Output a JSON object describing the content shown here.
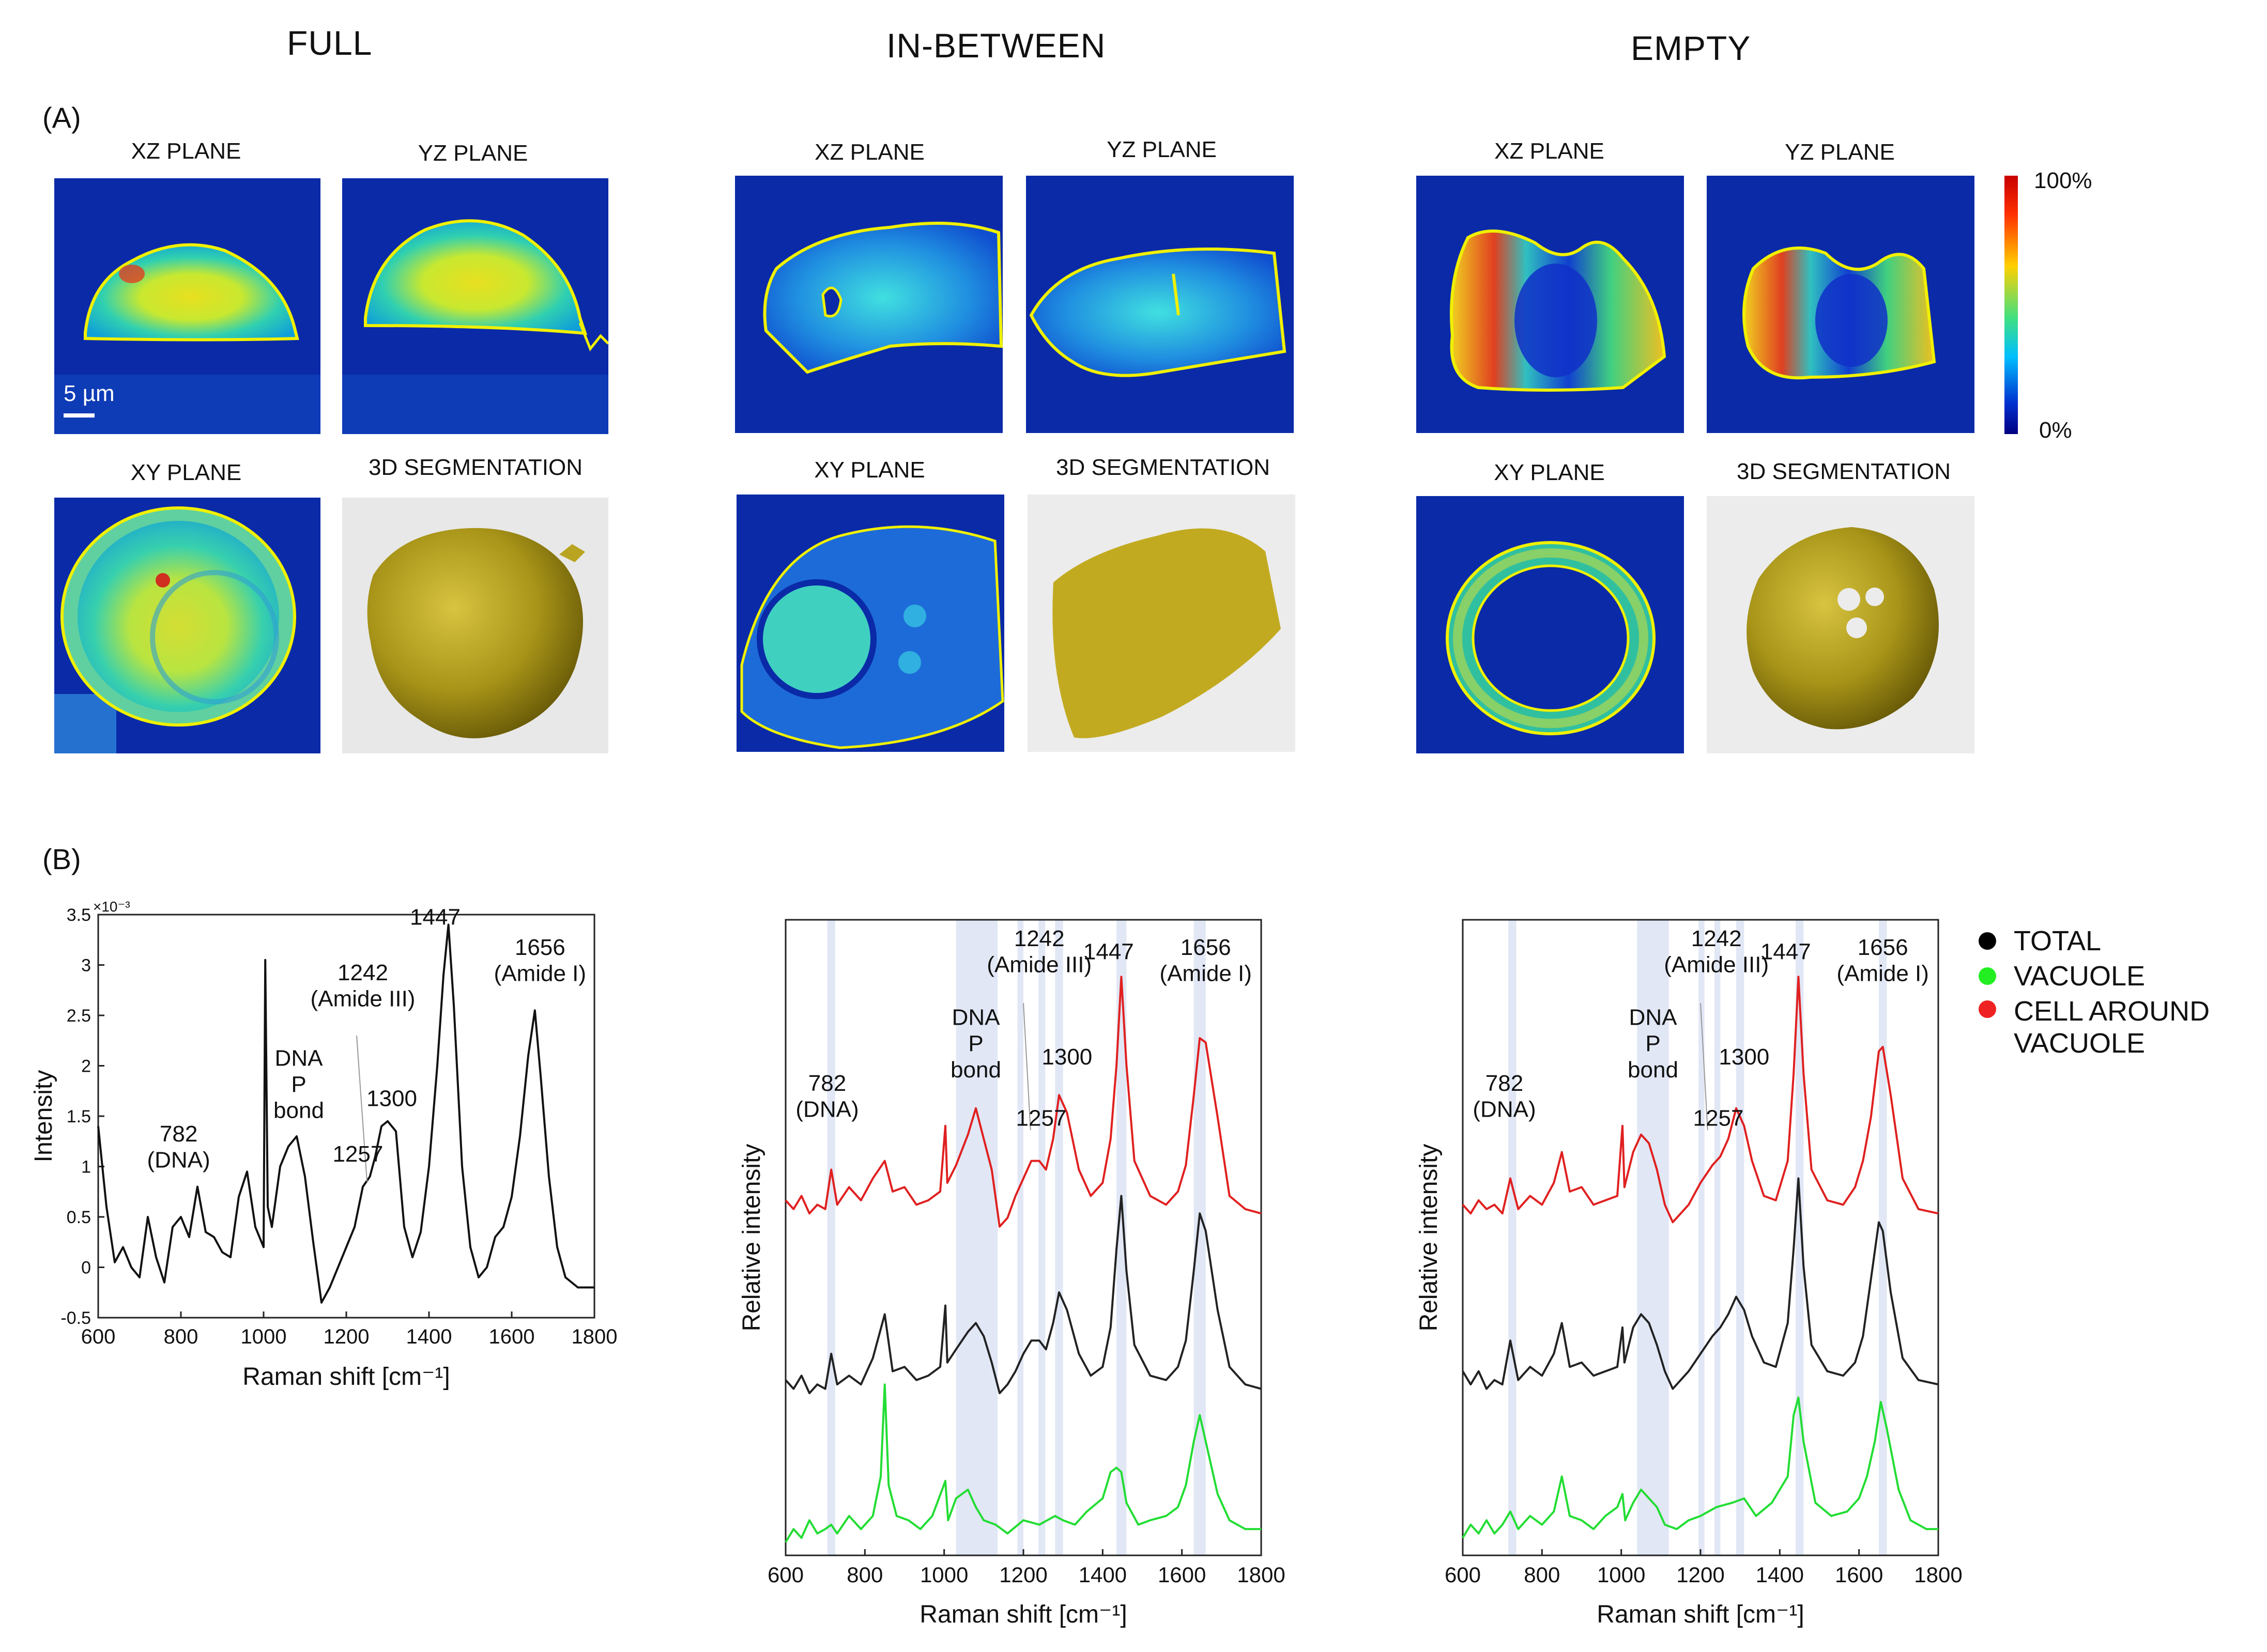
{
  "columns": {
    "full": "FULL",
    "in_between": "IN-BETWEEN",
    "empty": "EMPTY"
  },
  "panels": {
    "a": "(A)",
    "b": "(B)"
  },
  "planes": {
    "xz": "XZ PLANE",
    "yz": "YZ PLANE",
    "xy": "XY PLANE",
    "seg": "3D SEGMENTATION"
  },
  "scalebar": "5 µm",
  "colorbar": {
    "max": "100%",
    "min": "0%"
  },
  "legend": [
    {
      "label": "TOTAL",
      "color": "#000000"
    },
    {
      "label": "VACUOLE",
      "color": "#22ee22"
    },
    {
      "label": "CELL AROUND VACUOLE",
      "line1": "CELL AROUND",
      "line2": "VACUOLE",
      "color": "#ee2222"
    }
  ],
  "chart_data": [
    {
      "type": "line",
      "xlabel": "Raman shift [cm⁻¹]",
      "ylabel": "Intensity",
      "exponent": "×10⁻³",
      "xlim": [
        600,
        1800
      ],
      "ylim": [
        -0.5,
        3.5
      ],
      "xticks": [
        "600",
        "800",
        "1000",
        "1200",
        "1400",
        "1600",
        "1800"
      ],
      "yticks": [
        "-0.5",
        "0",
        "0.5",
        "1",
        "1.5",
        "2",
        "2.5",
        "3",
        "3.5"
      ],
      "series": [
        {
          "color": "#111111",
          "x": [
            600,
            620,
            640,
            660,
            680,
            700,
            720,
            740,
            760,
            780,
            800,
            820,
            840,
            860,
            880,
            900,
            920,
            940,
            960,
            980,
            1000,
            1004,
            1010,
            1020,
            1040,
            1060,
            1080,
            1100,
            1120,
            1140,
            1160,
            1180,
            1200,
            1220,
            1240,
            1257,
            1270,
            1285,
            1300,
            1320,
            1340,
            1360,
            1380,
            1400,
            1420,
            1435,
            1447,
            1460,
            1480,
            1500,
            1520,
            1540,
            1560,
            1580,
            1600,
            1620,
            1640,
            1656,
            1670,
            1690,
            1710,
            1730,
            1760,
            1800
          ],
          "y": [
            1.4,
            0.6,
            0.05,
            0.2,
            0.0,
            -0.1,
            0.5,
            0.1,
            -0.15,
            0.4,
            0.5,
            0.3,
            0.8,
            0.35,
            0.3,
            0.15,
            0.1,
            0.7,
            0.95,
            0.4,
            0.2,
            3.05,
            0.6,
            0.4,
            1.0,
            1.2,
            1.3,
            0.9,
            0.25,
            -0.35,
            -0.2,
            0.0,
            0.2,
            0.4,
            0.8,
            0.9,
            1.1,
            1.4,
            1.45,
            1.35,
            0.4,
            0.1,
            0.35,
            1.0,
            2.0,
            2.9,
            3.4,
            2.6,
            1.0,
            0.2,
            -0.1,
            0.0,
            0.3,
            0.4,
            0.7,
            1.3,
            2.1,
            2.55,
            1.9,
            0.9,
            0.2,
            -0.1,
            -0.2,
            -0.2
          ]
        }
      ],
      "annotations": [
        "782\n(DNA)",
        "DNA\nP\nbond",
        "1242\n(Amide III)",
        "1257",
        "1300",
        "1447",
        "1656\n(Amide I)"
      ]
    },
    {
      "type": "line",
      "xlabel": "Raman shift [cm⁻¹]",
      "ylabel": "Relative intensity",
      "xlim": [
        600,
        1800
      ],
      "xticks": [
        "600",
        "800",
        "1000",
        "1200",
        "1400",
        "1600",
        "1800"
      ],
      "bands": [
        [
          705,
          725
        ],
        [
          1030,
          1135
        ],
        [
          1185,
          1200
        ],
        [
          1238,
          1255
        ],
        [
          1280,
          1300
        ],
        [
          1435,
          1460
        ],
        [
          1630,
          1660
        ]
      ],
      "annotations": [
        "782\n(DNA)",
        "DNA\nP\nbond",
        "1242\n(Amide III)",
        "1257",
        "1300",
        "1447",
        "1656\n(Amide I)"
      ],
      "series": [
        {
          "name": "CELL AROUND VACUOLE",
          "color": "#e02020",
          "x": [
            600,
            620,
            640,
            660,
            680,
            700,
            715,
            730,
            760,
            790,
            820,
            850,
            870,
            900,
            930,
            960,
            990,
            1003,
            1008,
            1030,
            1060,
            1080,
            1100,
            1120,
            1140,
            1160,
            1180,
            1200,
            1220,
            1240,
            1257,
            1275,
            1290,
            1310,
            1340,
            1370,
            1400,
            1420,
            1435,
            1447,
            1460,
            1480,
            1520,
            1560,
            1590,
            1610,
            1630,
            1645,
            1660,
            1690,
            1720,
            1760,
            1800
          ],
          "y": [
            8.1,
            7.9,
            8.2,
            7.8,
            8.0,
            7.9,
            8.8,
            8.0,
            8.4,
            8.1,
            8.6,
            9.0,
            8.3,
            8.4,
            8.0,
            8.1,
            8.3,
            9.8,
            8.5,
            8.9,
            9.6,
            10.2,
            9.5,
            8.8,
            7.5,
            7.7,
            8.2,
            8.6,
            9.0,
            9.0,
            8.8,
            9.5,
            10.5,
            10.1,
            8.8,
            8.2,
            8.5,
            9.5,
            11.2,
            13.2,
            11.2,
            9.0,
            8.2,
            8.0,
            8.3,
            8.9,
            10.5,
            11.8,
            11.7,
            10.0,
            8.2,
            7.9,
            7.8
          ]
        },
        {
          "name": "TOTAL",
          "color": "#222222",
          "x": [
            600,
            620,
            640,
            660,
            680,
            700,
            715,
            730,
            760,
            790,
            820,
            850,
            870,
            900,
            930,
            960,
            990,
            1003,
            1008,
            1030,
            1060,
            1080,
            1100,
            1120,
            1140,
            1160,
            1180,
            1200,
            1220,
            1240,
            1257,
            1275,
            1290,
            1310,
            1340,
            1370,
            1400,
            1420,
            1435,
            1447,
            1460,
            1480,
            1520,
            1560,
            1590,
            1610,
            1630,
            1645,
            1660,
            1690,
            1720,
            1760,
            1800
          ],
          "y": [
            4.0,
            3.8,
            4.1,
            3.7,
            3.9,
            3.8,
            4.6,
            3.9,
            4.1,
            3.9,
            4.5,
            5.5,
            4.2,
            4.3,
            4.0,
            4.1,
            4.3,
            5.7,
            4.4,
            4.7,
            5.1,
            5.3,
            5.0,
            4.4,
            3.7,
            3.9,
            4.2,
            4.6,
            4.9,
            4.9,
            4.7,
            5.3,
            6.0,
            5.6,
            4.6,
            4.1,
            4.3,
            5.2,
            7.0,
            8.2,
            6.5,
            4.8,
            4.1,
            4.0,
            4.3,
            4.9,
            6.5,
            7.8,
            7.4,
            5.6,
            4.3,
            3.9,
            3.8
          ]
        },
        {
          "name": "VACUOLE",
          "color": "#22dd33",
          "x": [
            600,
            620,
            640,
            660,
            680,
            700,
            715,
            730,
            760,
            790,
            820,
            840,
            850,
            860,
            880,
            910,
            940,
            970,
            995,
            1003,
            1010,
            1030,
            1060,
            1080,
            1100,
            1130,
            1160,
            1200,
            1240,
            1280,
            1300,
            1330,
            1360,
            1400,
            1420,
            1435,
            1447,
            1460,
            1490,
            1520,
            1560,
            1590,
            1610,
            1630,
            1645,
            1660,
            1690,
            1720,
            1760,
            1800
          ],
          "y": [
            0.3,
            0.6,
            0.4,
            0.8,
            0.5,
            0.6,
            0.7,
            0.5,
            0.9,
            0.6,
            0.9,
            1.8,
            3.9,
            1.6,
            0.9,
            0.8,
            0.6,
            0.9,
            1.5,
            1.7,
            0.8,
            1.3,
            1.5,
            1.1,
            0.8,
            0.7,
            0.5,
            0.8,
            0.7,
            0.9,
            0.8,
            0.7,
            1.0,
            1.3,
            1.9,
            2.0,
            1.9,
            1.2,
            0.7,
            0.8,
            0.9,
            1.1,
            1.6,
            2.6,
            3.2,
            2.6,
            1.4,
            0.8,
            0.6,
            0.6
          ]
        }
      ]
    },
    {
      "type": "line",
      "xlabel": "Raman shift [cm⁻¹]",
      "ylabel": "Relative intensity",
      "xlim": [
        600,
        1800
      ],
      "xticks": [
        "600",
        "800",
        "1000",
        "1200",
        "1400",
        "1600",
        "1800"
      ],
      "bands": [
        [
          715,
          735
        ],
        [
          1040,
          1120
        ],
        [
          1195,
          1210
        ],
        [
          1235,
          1250
        ],
        [
          1290,
          1310
        ],
        [
          1440,
          1460
        ],
        [
          1650,
          1670
        ]
      ],
      "annotations": [
        "782\n(DNA)",
        "DNA\nP\nbond",
        "1242\n(Amide III)",
        "1257",
        "1300",
        "1447",
        "1656\n(Amide I)"
      ],
      "series": [
        {
          "name": "CELL AROUND VACUOLE",
          "color": "#e02020",
          "x": [
            600,
            620,
            640,
            660,
            680,
            700,
            720,
            740,
            770,
            800,
            830,
            850,
            870,
            900,
            930,
            960,
            990,
            1003,
            1008,
            1030,
            1050,
            1070,
            1090,
            1110,
            1130,
            1150,
            1170,
            1200,
            1230,
            1250,
            1270,
            1290,
            1310,
            1330,
            1360,
            1390,
            1420,
            1435,
            1447,
            1460,
            1480,
            1520,
            1560,
            1590,
            1610,
            1630,
            1650,
            1660,
            1680,
            1710,
            1750,
            1800
          ],
          "y": [
            8.0,
            7.8,
            8.1,
            7.9,
            8.0,
            7.8,
            8.6,
            7.9,
            8.2,
            8.0,
            8.5,
            9.2,
            8.3,
            8.4,
            8.0,
            8.1,
            8.2,
            9.8,
            8.4,
            9.2,
            9.6,
            9.4,
            8.8,
            8.0,
            7.6,
            7.8,
            8.0,
            8.5,
            8.9,
            9.1,
            9.5,
            10.2,
            9.8,
            9.0,
            8.2,
            8.1,
            9.0,
            11.0,
            13.2,
            11.0,
            8.8,
            8.1,
            8.0,
            8.4,
            9.0,
            10.0,
            11.5,
            11.6,
            10.5,
            8.6,
            7.9,
            7.8
          ]
        },
        {
          "name": "TOTAL",
          "color": "#222222",
          "x": [
            600,
            620,
            640,
            660,
            680,
            700,
            720,
            740,
            770,
            800,
            830,
            850,
            870,
            900,
            930,
            960,
            990,
            1003,
            1008,
            1030,
            1050,
            1070,
            1090,
            1110,
            1130,
            1150,
            1170,
            1200,
            1230,
            1250,
            1270,
            1290,
            1310,
            1330,
            1360,
            1390,
            1420,
            1435,
            1447,
            1460,
            1480,
            1520,
            1560,
            1590,
            1610,
            1630,
            1650,
            1660,
            1680,
            1710,
            1750,
            1800
          ],
          "y": [
            4.2,
            3.9,
            4.2,
            3.8,
            4.0,
            3.9,
            4.9,
            4.0,
            4.3,
            4.1,
            4.6,
            5.3,
            4.3,
            4.4,
            4.1,
            4.2,
            4.3,
            5.2,
            4.4,
            5.2,
            5.5,
            5.3,
            4.8,
            4.2,
            3.8,
            4.0,
            4.2,
            4.6,
            5.0,
            5.2,
            5.5,
            5.9,
            5.6,
            5.0,
            4.4,
            4.3,
            5.3,
            7.0,
            8.6,
            6.6,
            4.8,
            4.2,
            4.1,
            4.4,
            5.0,
            6.3,
            7.6,
            7.4,
            6.0,
            4.5,
            4.0,
            3.9
          ]
        },
        {
          "name": "VACUOLE",
          "color": "#22dd33",
          "x": [
            600,
            620,
            640,
            660,
            680,
            700,
            720,
            740,
            770,
            800,
            830,
            850,
            870,
            900,
            930,
            960,
            990,
            1003,
            1010,
            1030,
            1050,
            1070,
            1090,
            1110,
            1140,
            1170,
            1200,
            1240,
            1280,
            1310,
            1340,
            1380,
            1420,
            1435,
            1447,
            1460,
            1490,
            1530,
            1570,
            1600,
            1620,
            1640,
            1655,
            1670,
            1700,
            1730,
            1770,
            1800
          ],
          "y": [
            0.4,
            0.7,
            0.5,
            0.8,
            0.5,
            0.7,
            1.0,
            0.6,
            0.9,
            0.7,
            1.0,
            1.8,
            0.9,
            0.8,
            0.6,
            0.9,
            1.1,
            1.4,
            0.8,
            1.2,
            1.5,
            1.3,
            1.1,
            0.7,
            0.6,
            0.8,
            0.9,
            1.1,
            1.2,
            1.3,
            0.9,
            1.2,
            1.8,
            3.2,
            3.6,
            2.6,
            1.2,
            0.9,
            1.0,
            1.3,
            1.8,
            2.6,
            3.5,
            2.9,
            1.5,
            0.8,
            0.6,
            0.6
          ]
        }
      ]
    }
  ]
}
